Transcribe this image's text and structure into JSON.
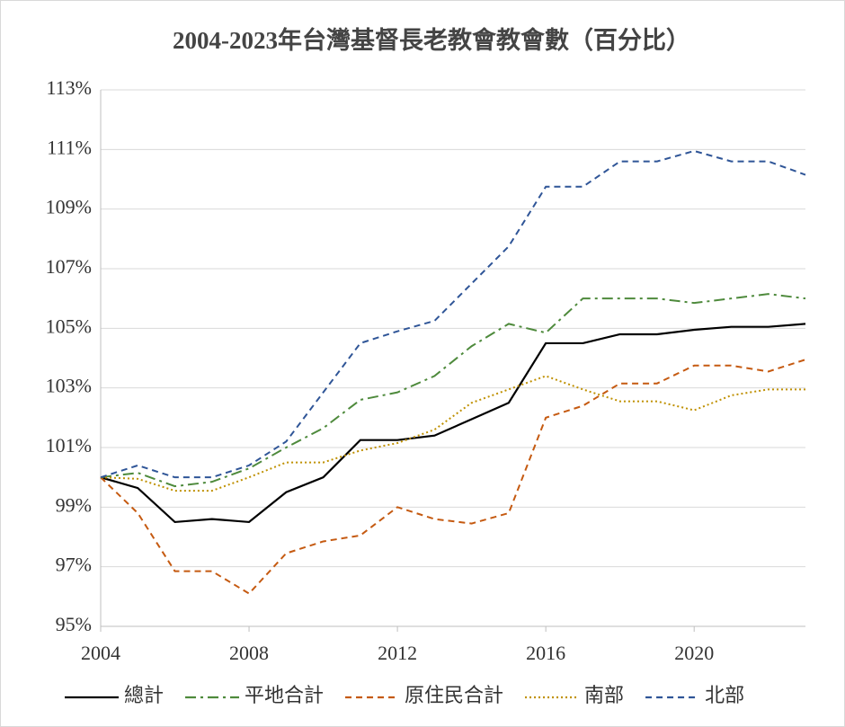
{
  "chart_data": {
    "type": "line",
    "title": "2004-2023年台灣基督長老教會教會數（百分比）",
    "x": [
      2004,
      2005,
      2006,
      2007,
      2008,
      2009,
      2010,
      2011,
      2012,
      2013,
      2014,
      2015,
      2016,
      2017,
      2018,
      2019,
      2020,
      2021,
      2022,
      2023
    ],
    "xlim": [
      2004,
      2023
    ],
    "xticks": [
      2004,
      2008,
      2012,
      2016,
      2020
    ],
    "ylim": [
      95,
      113
    ],
    "yticks": [
      {
        "value": 95,
        "label": "95%"
      },
      {
        "value": 97,
        "label": "97%"
      },
      {
        "value": 99,
        "label": "99%"
      },
      {
        "value": 101,
        "label": "101%"
      },
      {
        "value": 103,
        "label": "103%"
      },
      {
        "value": 105,
        "label": "105%"
      },
      {
        "value": 107,
        "label": "107%"
      },
      {
        "value": 109,
        "label": "109%"
      },
      {
        "value": 111,
        "label": "111%"
      },
      {
        "value": 113,
        "label": "113%"
      }
    ],
    "grid": true,
    "legend": "bottom",
    "series": [
      {
        "name": "總計",
        "color": "#000000",
        "dash": "solid",
        "values": [
          100,
          99.64,
          98.5,
          98.6,
          98.5,
          99.5,
          100.0,
          101.25,
          101.25,
          101.4,
          101.95,
          102.5,
          104.5,
          104.5,
          104.8,
          104.8,
          104.95,
          105.05,
          105.05,
          105.15
        ]
      },
      {
        "name": "平地合計",
        "color": "#4e8a3c",
        "dash": "dashdot",
        "values": [
          100,
          100.15,
          99.7,
          99.85,
          100.3,
          101.0,
          101.65,
          102.6,
          102.85,
          103.4,
          104.4,
          105.15,
          104.85,
          106.0,
          106.0,
          106.0,
          105.85,
          106.0,
          106.15,
          106.0
        ]
      },
      {
        "name": "原住民合計",
        "color": "#c55a11",
        "dash": "dash",
        "values": [
          100,
          98.8,
          96.85,
          96.85,
          96.1,
          97.45,
          97.85,
          98.05,
          99.0,
          98.6,
          98.45,
          98.8,
          102.0,
          102.4,
          103.15,
          103.15,
          103.75,
          103.75,
          103.55,
          103.95
        ]
      },
      {
        "name": "南部",
        "color": "#bf9000",
        "dash": "dot",
        "values": [
          100,
          99.95,
          99.55,
          99.55,
          100.0,
          100.5,
          100.5,
          100.9,
          101.15,
          101.6,
          102.5,
          102.95,
          103.4,
          102.95,
          102.55,
          102.55,
          102.25,
          102.75,
          102.95,
          102.95
        ]
      },
      {
        "name": "北部",
        "color": "#2f5597",
        "dash": "dash",
        "values": [
          100,
          100.4,
          100.0,
          100.0,
          100.4,
          101.2,
          102.85,
          104.5,
          104.9,
          105.25,
          106.5,
          107.75,
          109.75,
          109.75,
          110.6,
          110.6,
          110.95,
          110.6,
          110.6,
          110.15
        ]
      }
    ]
  }
}
